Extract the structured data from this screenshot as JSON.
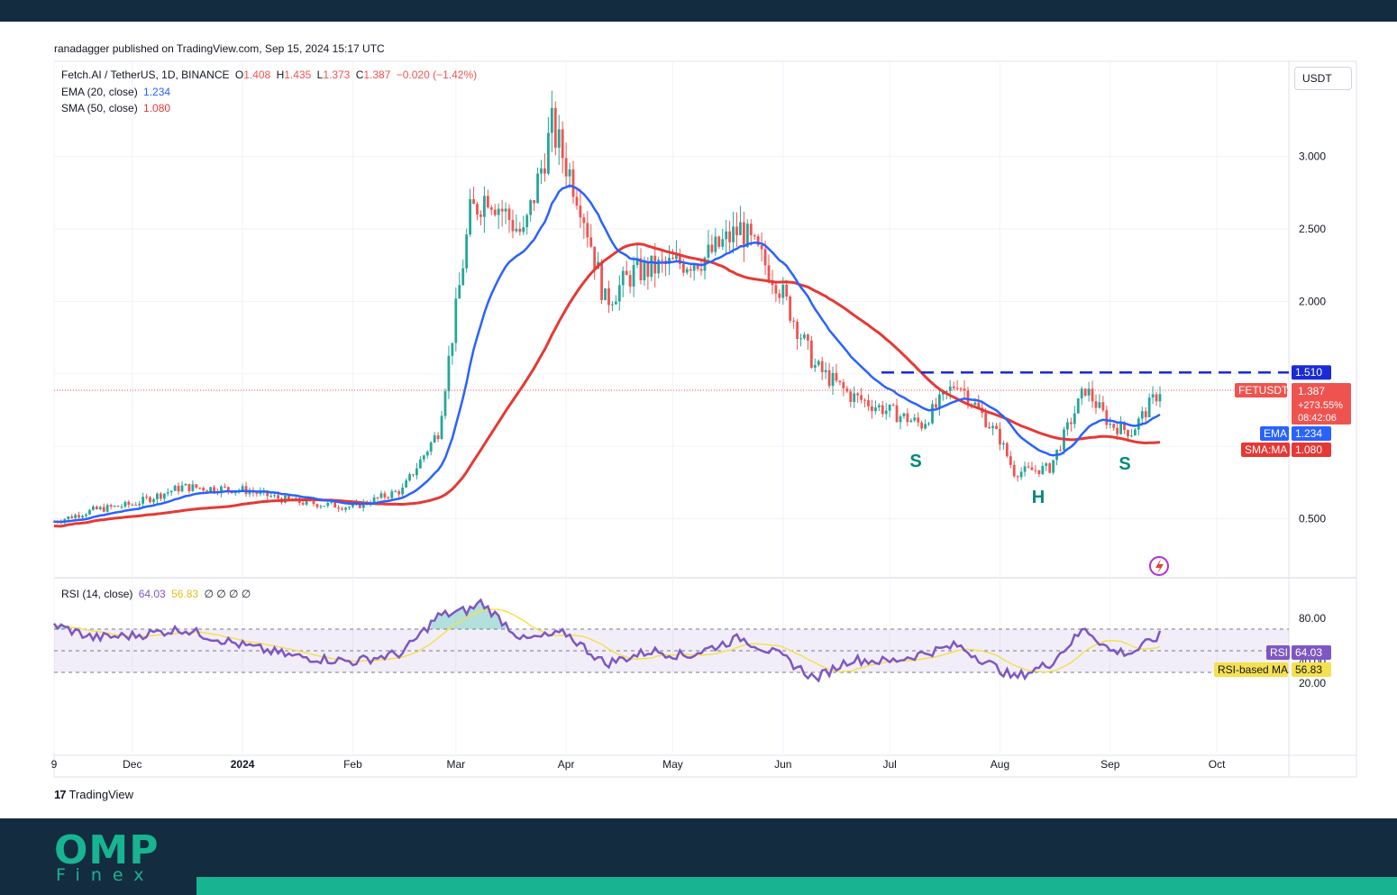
{
  "header": {
    "published": "ranadagger published on TradingView.com, Sep 15, 2024 15:17 UTC"
  },
  "legend": {
    "symbol": "Fetch.AI / TetherUS, 1D, BINANCE",
    "o_label": "O",
    "o_val": "1.408",
    "h_label": "H",
    "h_val": "1.435",
    "l_label": "L",
    "l_val": "1.373",
    "c_label": "C",
    "c_val": "1.387",
    "change": "−0.020 (−1.42%)",
    "ema_label": "EMA (20, close)",
    "ema_val": "1.234",
    "sma_label": "SMA (50, close)",
    "sma_val": "1.080",
    "rsi_label": "RSI (14, close)",
    "rsi_val": "64.03",
    "rsi_ma_val": "56.83",
    "rsi_extra": "∅ ∅ ∅ ∅"
  },
  "currency_button": "USDT",
  "brand": {
    "tv": "TradingView",
    "tv_mark": "17",
    "footer_logo": "OMP",
    "footer_sub": "Finex"
  },
  "colors": {
    "up": "#26a69a",
    "down": "#ef5350",
    "ema": "#2962ff",
    "sma": "#e53935",
    "rsi": "#7e57c2",
    "rsi_ma": "#f5e050",
    "resistance": "#1a2bd6",
    "pattern": "#00897b"
  },
  "chart_data": [
    {
      "type": "candlestick",
      "title": "Fetch.AI / TetherUS, 1D, BINANCE",
      "y_ticks": [
        "3.000",
        "2.500",
        "2.000",
        "0.500"
      ],
      "x_ticks": [
        "9",
        "Dec",
        "2024",
        "Feb",
        "Mar",
        "Apr",
        "May",
        "Jun",
        "Jul",
        "Aug",
        "Sep",
        "Oct"
      ],
      "ylim": [
        0.0,
        3.5
      ],
      "labels": {
        "resistance": "1.510",
        "symbol_tag": "FETUSDT",
        "last_price": "1.387",
        "pct_change": "+273.55%",
        "countdown": "08:42:06",
        "ema_tag": "EMA",
        "ema_val": "1.234",
        "sma_tag": "SMA:MA",
        "sma_val": "1.080"
      },
      "resistance_level": 1.51,
      "last_price_level": 1.387,
      "annotations": [
        "S",
        "H",
        "S"
      ],
      "price_path": [
        [
          "Nov 9",
          0.48
        ],
        [
          "Nov 20",
          0.56
        ],
        [
          "Dec 1",
          0.6
        ],
        [
          "Dec 15",
          0.72
        ],
        [
          "Jan 1",
          0.7
        ],
        [
          "Jan 15",
          0.62
        ],
        [
          "Feb 1",
          0.58
        ],
        [
          "Feb 15",
          0.7
        ],
        [
          "Feb 25",
          1.1
        ],
        [
          "Mar 5",
          2.6
        ],
        [
          "Mar 10",
          2.75
        ],
        [
          "Mar 20",
          2.45
        ],
        [
          "Mar 28",
          3.2
        ],
        [
          "Apr 5",
          2.7
        ],
        [
          "Apr 12",
          2.0
        ],
        [
          "Apr 20",
          2.2
        ],
        [
          "Apr 30",
          2.25
        ],
        [
          "May 10",
          2.3
        ],
        [
          "May 20",
          2.5
        ],
        [
          "May 30",
          2.15
        ],
        [
          "Jun 10",
          1.55
        ],
        [
          "Jun 20",
          1.35
        ],
        [
          "Jun 30",
          1.25
        ],
        [
          "Jul 10",
          1.15
        ],
        [
          "Jul 20",
          1.45
        ],
        [
          "Aug 1",
          1.05
        ],
        [
          "Aug 5",
          0.82
        ],
        [
          "Aug 15",
          0.85
        ],
        [
          "Aug 25",
          1.4
        ],
        [
          "Sep 1",
          1.15
        ],
        [
          "Sep 7",
          1.1
        ],
        [
          "Sep 15",
          1.39
        ]
      ]
    },
    {
      "type": "line",
      "title": "RSI (14, close)",
      "y_ticks": [
        "80.00",
        "40.00",
        "20.00"
      ],
      "ylim": [
        20,
        100
      ],
      "overbought": 70,
      "middle": 50,
      "oversold": 30,
      "labels": {
        "rsi_tag": "RSI",
        "rsi_val": "64.03",
        "ma_tag": "RSI-based MA",
        "ma_val": "56.83"
      },
      "rsi_path": [
        [
          "Nov 9",
          74
        ],
        [
          "Nov 20",
          62
        ],
        [
          "Dec 1",
          64
        ],
        [
          "Dec 15",
          70
        ],
        [
          "Jan 1",
          55
        ],
        [
          "Jan 15",
          45
        ],
        [
          "Feb 1",
          40
        ],
        [
          "Feb 15",
          48
        ],
        [
          "Feb 25",
          82
        ],
        [
          "Mar 5",
          88
        ],
        [
          "Mar 8",
          95
        ],
        [
          "Mar 20",
          60
        ],
        [
          "Apr 1",
          66
        ],
        [
          "Apr 12",
          38
        ],
        [
          "Apr 25",
          50
        ],
        [
          "May 5",
          45
        ],
        [
          "May 20",
          62
        ],
        [
          "Jun 1",
          44
        ],
        [
          "Jun 10",
          24
        ],
        [
          "Jun 20",
          42
        ],
        [
          "Jul 1",
          40
        ],
        [
          "Jul 20",
          55
        ],
        [
          "Aug 5",
          25
        ],
        [
          "Aug 15",
          38
        ],
        [
          "Aug 25",
          71
        ],
        [
          "Sep 1",
          50
        ],
        [
          "Sep 7",
          48
        ],
        [
          "Sep 15",
          64
        ]
      ]
    }
  ]
}
